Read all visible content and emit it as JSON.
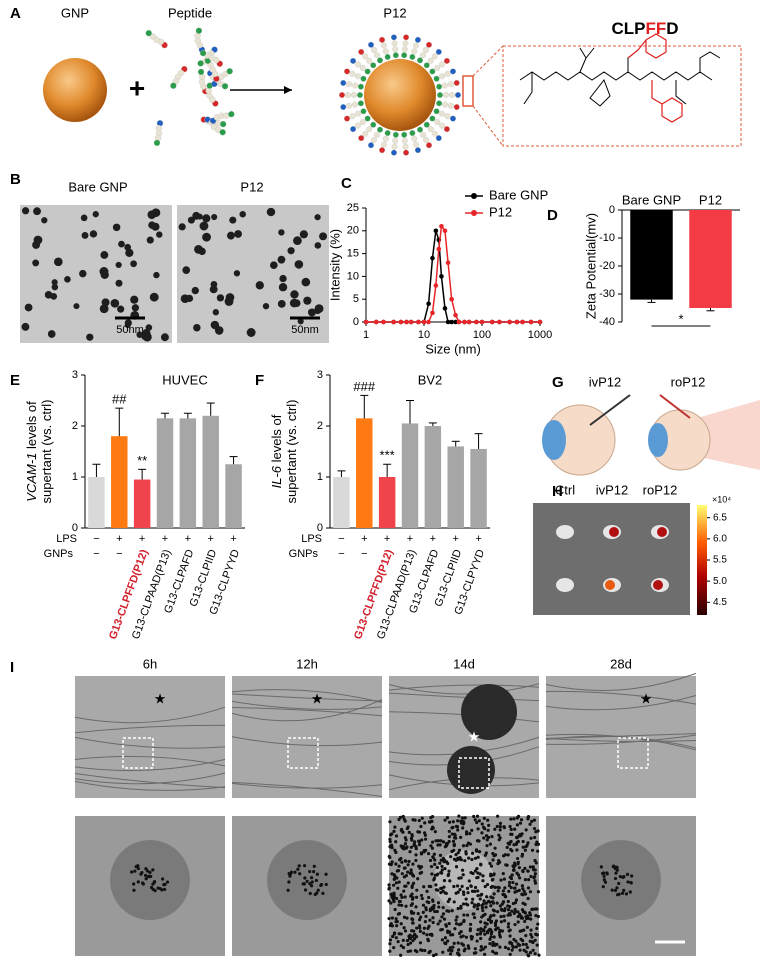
{
  "panel_a": {
    "label": "A",
    "gnp": "GNP",
    "peptide": "Peptide",
    "product": "P12",
    "sequence": [
      "CLP",
      "FF",
      "D"
    ]
  },
  "panel_b": {
    "label": "B",
    "images": [
      {
        "title": "Bare GNP",
        "scale_bar": "50nm"
      },
      {
        "title": "P12",
        "scale_bar": "50nm"
      }
    ]
  },
  "chart_data": [
    {
      "panel": "C",
      "type": "line",
      "x": [
        1,
        1.5,
        2,
        3,
        4,
        5,
        6,
        8,
        10,
        12,
        14,
        16,
        18,
        20,
        23,
        26,
        30,
        35,
        40,
        50,
        60,
        80,
        100,
        150,
        200,
        300,
        400,
        500,
        700,
        1000
      ],
      "series": [
        {
          "name": "Bare GNP",
          "color": "#000000",
          "values": [
            0,
            0,
            0,
            0,
            0,
            0,
            0,
            0,
            0,
            4,
            14,
            20,
            18,
            10,
            3,
            0,
            0,
            0,
            0,
            0,
            0,
            0,
            0,
            0,
            0,
            0,
            0,
            0,
            0,
            0
          ]
        },
        {
          "name": "P12",
          "color": "#e8262a",
          "values": [
            0,
            0,
            0,
            0,
            0,
            0,
            0,
            0,
            0,
            0,
            2,
            8,
            16,
            21,
            20,
            13,
            5,
            1.5,
            0,
            0,
            0,
            0,
            0,
            0,
            0,
            0,
            0,
            0,
            0,
            0
          ]
        }
      ],
      "xlabel": "Size (nm)",
      "ylabel": "Intensity (%)",
      "xscale": "log",
      "xlim": [
        1,
        1000
      ],
      "xticks": [
        1,
        10,
        100,
        1000
      ],
      "ylim": [
        0,
        25
      ],
      "yticks": [
        0,
        5,
        10,
        15,
        20,
        25
      ],
      "legend": "upper right"
    },
    {
      "panel": "D",
      "type": "bar",
      "categories": [
        "Bare GNP",
        "P12"
      ],
      "values": [
        -32,
        -35
      ],
      "errors": [
        1,
        1
      ],
      "colors": [
        "#000000",
        "#f23b45"
      ],
      "ylabel": "Zeta Potential(mv)",
      "ylim": [
        -40,
        0
      ],
      "yticks": [
        -40,
        -30,
        -20,
        -10,
        0
      ],
      "annotation": "*"
    },
    {
      "panel": "E",
      "type": "bar",
      "title": "HUVEC",
      "ylabel_gene": "VCAM-1",
      "ylabel": [
        " levels of",
        "supertant (vs. ctrl)"
      ],
      "categories": [
        null,
        null,
        "G13-CLPFFD(P12)",
        "G13-CLPAAD(P13)",
        "G13-CLPAFD",
        "G13-CLPIID",
        "G13-CLPYYD"
      ],
      "values": [
        1.0,
        1.8,
        0.95,
        2.15,
        2.15,
        2.2,
        1.25
      ],
      "errors": [
        0.25,
        0.55,
        0.2,
        0.1,
        0.1,
        0.25,
        0.15
      ],
      "colors": [
        "#d9d9d9",
        "#ff7a12",
        "#f0434c",
        "#a6a6a6",
        "#a6a6a6",
        "#a6a6a6",
        "#a6a6a6"
      ],
      "significance": [
        null,
        "##",
        "**",
        null,
        null,
        null,
        null
      ],
      "highlight": 2,
      "highlight_color": "#d21f2b",
      "lps_label": "LPS",
      "lps": [
        "−",
        "+",
        "+",
        "+",
        "+",
        "+",
        "+"
      ],
      "gnps_label": "GNPs",
      "gnps": [
        "−",
        "−"
      ],
      "ylim": [
        0,
        3
      ],
      "yticks": [
        0,
        1,
        2,
        3
      ]
    },
    {
      "panel": "F",
      "type": "bar",
      "title": "BV2",
      "ylabel_gene": "IL-6",
      "ylabel": [
        " levels of",
        "supertant (vs. ctrl)"
      ],
      "categories": [
        null,
        null,
        "G13-CLPFFD(P12)",
        "G13-CLPAAD(P13)",
        "G13-CLPAFD",
        "G13-CLPIID",
        "G13-CLPYYD"
      ],
      "values": [
        1.0,
        2.15,
        1.0,
        2.05,
        2.0,
        1.6,
        1.55
      ],
      "errors": [
        0.12,
        0.45,
        0.25,
        0.45,
        0.06,
        0.1,
        0.3
      ],
      "colors": [
        "#d9d9d9",
        "#ff7a12",
        "#f0434c",
        "#a6a6a6",
        "#a6a6a6",
        "#a6a6a6",
        "#a6a6a6"
      ],
      "significance": [
        null,
        "###",
        "***",
        null,
        null,
        null,
        null
      ],
      "highlight": 2,
      "highlight_color": "#d21f2b",
      "lps_label": "LPS",
      "lps": [
        "−",
        "+",
        "+",
        "+",
        "+",
        "+",
        "+"
      ],
      "gnps_label": "GNPs",
      "gnps": [
        "−",
        "−"
      ],
      "ylim": [
        0,
        3
      ],
      "yticks": [
        0,
        1,
        2,
        3
      ]
    }
  ],
  "panel_g": {
    "label": "G",
    "routes": [
      "ivP12",
      "roP12"
    ]
  },
  "panel_h": {
    "label": "H",
    "columns": [
      "Ctrl",
      "ivP12",
      "roP12"
    ],
    "colorbar": {
      "unit": "×10⁴",
      "lim": [
        4.2,
        6.8
      ],
      "ticks": [
        6.5,
        {
          "value": 6,
          "label": "6.0"
        },
        5.5,
        {
          "value": 5,
          "label": "5.0"
        },
        4.5
      ]
    }
  },
  "panel_i": {
    "label": "I",
    "times": [
      "6h",
      "12h",
      "14d",
      "28d"
    ]
  }
}
